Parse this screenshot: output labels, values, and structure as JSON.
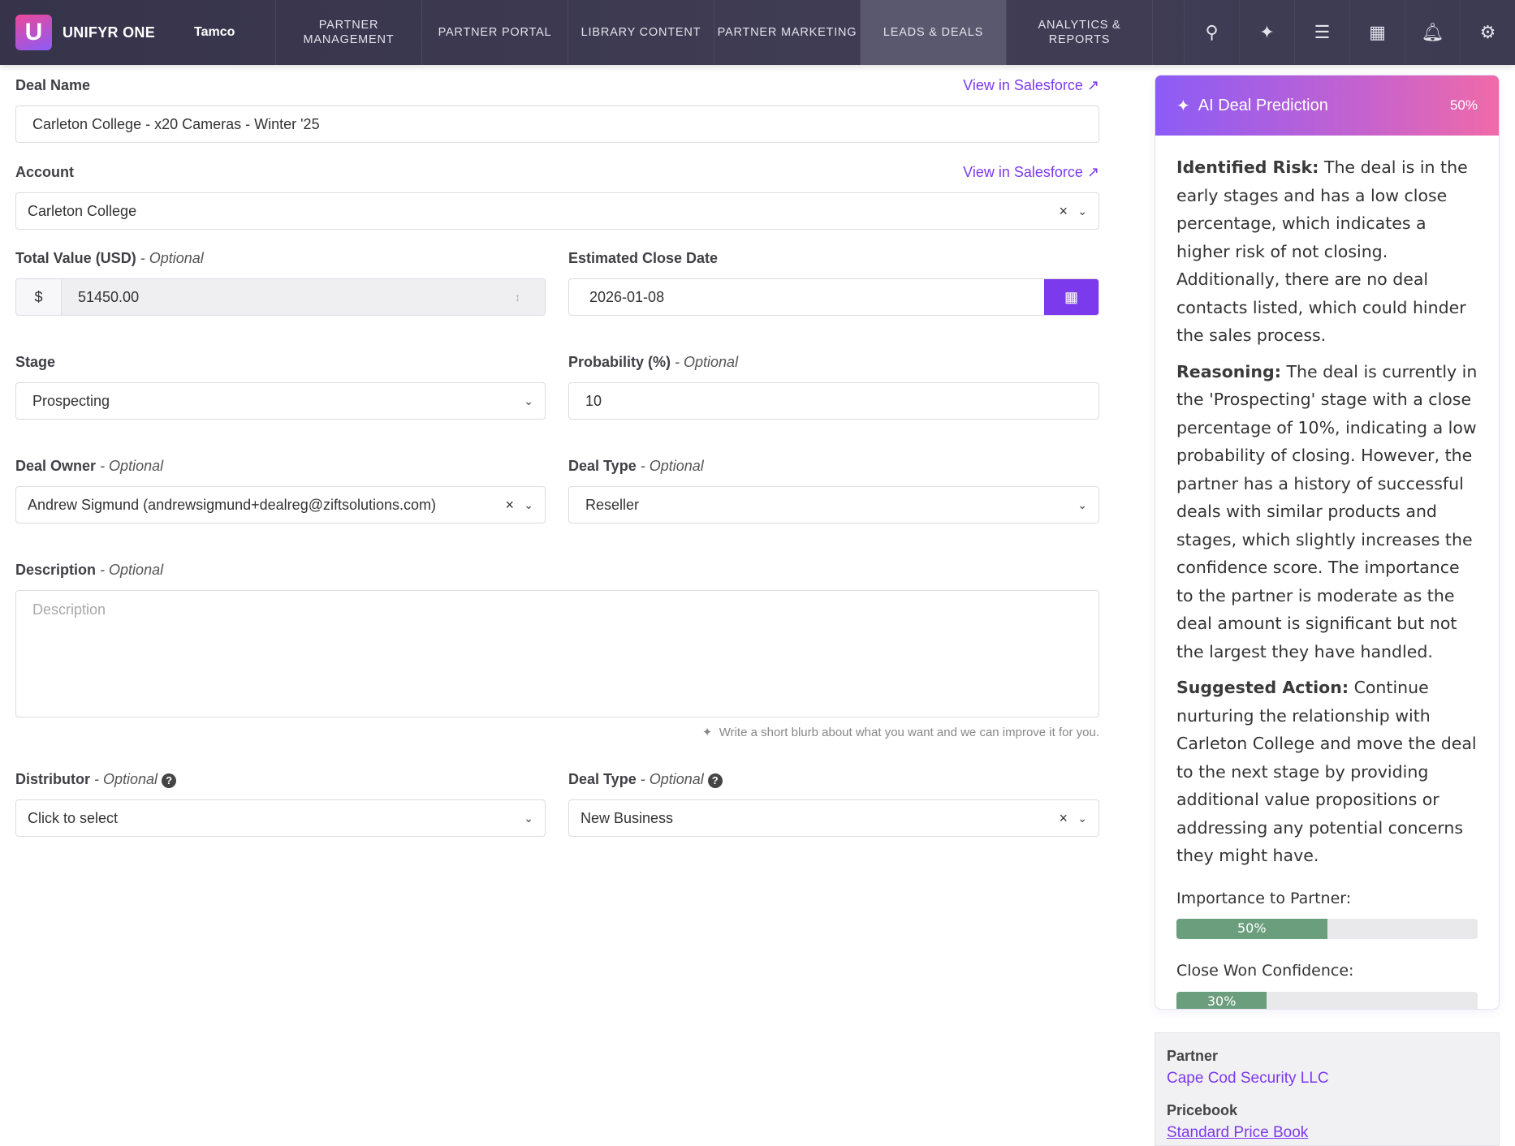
{
  "nav": {
    "brand": "UNIFYR ONE",
    "logo_letter": "U",
    "org": "Tamco",
    "items": [
      {
        "label": "PARTNER MANAGEMENT"
      },
      {
        "label": "PARTNER PORTAL"
      },
      {
        "label": "LIBRARY CONTENT"
      },
      {
        "label": "PARTNER MARKETING"
      },
      {
        "label": "LEADS & DEALS",
        "active": true
      },
      {
        "label": "ANALYTICS & REPORTS"
      }
    ],
    "icons": [
      "search-icon",
      "sparkles-icon",
      "layers-icon",
      "grid-icon",
      "bell-icon",
      "gear-icon"
    ]
  },
  "form": {
    "deal_name": {
      "label": "Deal Name",
      "value": "Carleton College - x20 Cameras - Winter '25",
      "link": "View in Salesforce"
    },
    "account": {
      "label": "Account",
      "value": "Carleton College",
      "link": "View in Salesforce"
    },
    "total_value": {
      "label": "Total Value (USD)",
      "optional": "- Optional",
      "prefix": "$",
      "value": "51450.00"
    },
    "close_date": {
      "label": "Estimated Close Date",
      "value": "2026-01-08"
    },
    "stage": {
      "label": "Stage",
      "value": "Prospecting"
    },
    "probability": {
      "label": "Probability (%)",
      "optional": "- Optional",
      "value": "10"
    },
    "deal_owner": {
      "label": "Deal Owner",
      "optional": "- Optional",
      "value": "Andrew Sigmund (andrewsigmund+dealreg@ziftsolutions.com)"
    },
    "deal_type": {
      "label": "Deal Type",
      "optional": "- Optional",
      "value": "Reseller"
    },
    "description": {
      "label": "Description",
      "optional": "- Optional",
      "placeholder": "Description",
      "hint": "Write a short blurb about what you want and we can improve it for you."
    },
    "distributor": {
      "label": "Distributor",
      "optional": "- Optional",
      "value": "Click to select"
    },
    "deal_type2": {
      "label": "Deal Type",
      "optional": "- Optional",
      "value": "New Business"
    }
  },
  "ai": {
    "title": "AI Deal Prediction",
    "score": "50%",
    "risk_label": "Identified Risk:",
    "risk": "The deal is in the early stages and has a low close percentage, which indicates a higher risk of not closing. Additionally, there are no deal contacts listed, which could hinder the sales process.",
    "reasoning_label": "Reasoning:",
    "reasoning": "The deal is currently in the 'Prospecting' stage with a close percentage of 10%, indicating a low probability of closing. However, the partner has a history of successful deals with similar products and stages, which slightly increases the confidence score. The importance to the partner is moderate as the deal amount is significant but not the largest they have handled.",
    "action_label": "Suggested Action:",
    "action": "Continue nurturing the relationship with Carleton College and move the deal to the next stage by providing additional value propositions or addressing any potential concerns they might have.",
    "importance_label": "Importance to Partner:",
    "importance": 50,
    "importance_text": "50%",
    "confidence_label": "Close Won Confidence:",
    "confidence": 30,
    "confidence_text": "30%"
  },
  "side": {
    "partner_label": "Partner",
    "partner": "Cape Cod Security LLC",
    "pricebook_label": "Pricebook",
    "pricebook": "Standard Price Book"
  },
  "colors": {
    "accent": "#7c3aed",
    "nav_bg": "#3b3850",
    "progress": "#6b9e7d"
  }
}
